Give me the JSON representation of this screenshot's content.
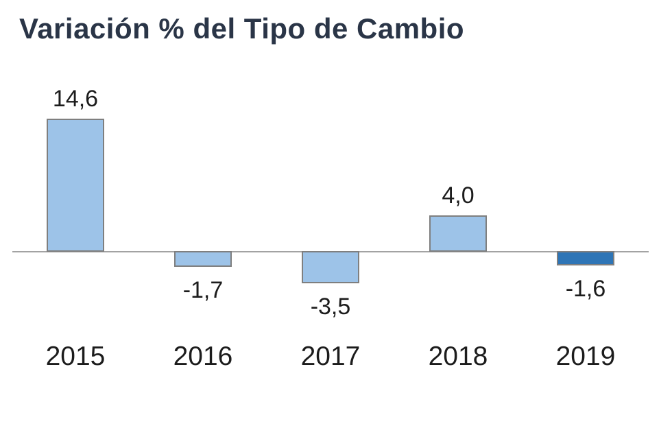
{
  "chart_data": {
    "type": "bar",
    "title": "Variación % del Tipo de Cambio",
    "categories": [
      "2015",
      "2016",
      "2017",
      "2018",
      "2019"
    ],
    "values": [
      14.6,
      -1.7,
      -3.5,
      4.0,
      -1.6
    ],
    "value_labels": [
      "14,6",
      "-1,7",
      "-3,5",
      "4,0",
      "-1,6"
    ],
    "xlabel": "",
    "ylabel": "",
    "baseline": 0,
    "grid": false,
    "legend": "none",
    "decimal_separator": ",",
    "highlighted_category": "2019",
    "bar_colors": [
      "#9dc3e8",
      "#9dc3e8",
      "#9dc3e8",
      "#9dc3e8",
      "#2e75b6"
    ],
    "colors": {
      "bar_fill": "#9dc3e8",
      "bar_highlight": "#2e75b6",
      "bar_border": "#7f7f7f",
      "axis_line": "#a3a3a3",
      "title_text": "#2a3547",
      "label_text": "#1c1c1c",
      "background": "#ffffff"
    }
  }
}
